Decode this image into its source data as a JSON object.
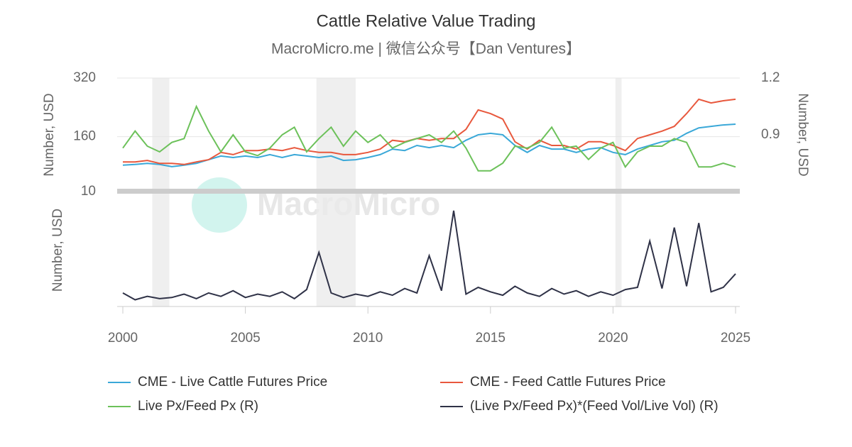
{
  "chart_data": [
    {
      "type": "line",
      "title": "Cattle Relative Value Trading",
      "subtitle": "MacroMicro.me | 微信公众号【Dan Ventures】",
      "watermark": "MacroMicro",
      "x": [
        2000,
        2000.5,
        2001,
        2001.5,
        2002,
        2002.5,
        2003,
        2003.5,
        2004,
        2004.5,
        2005,
        2005.5,
        2006,
        2006.5,
        2007,
        2007.5,
        2008,
        2008.5,
        2009,
        2009.5,
        2010,
        2010.5,
        2011,
        2011.5,
        2012,
        2012.5,
        2013,
        2013.5,
        2014,
        2014.5,
        2015,
        2015.5,
        2016,
        2016.5,
        2017,
        2017.5,
        2018,
        2018.5,
        2019,
        2019.5,
        2020,
        2020.5,
        2021,
        2021.5,
        2022,
        2022.5,
        2023,
        2023.5,
        2024,
        2024.5,
        2025
      ],
      "xlim": [
        2000,
        2025
      ],
      "ylim": [
        10,
        320
      ],
      "yticks": [
        10,
        160,
        320
      ],
      "y2lim": [
        0.6,
        1.2
      ],
      "y2ticks": [
        0.9,
        1.2
      ],
      "ylabel": "Number, USD",
      "y2label": "Number, USD",
      "grid": true,
      "bands": [
        [
          2001.2,
          2001.9
        ],
        [
          2007.9,
          2009.5
        ],
        [
          2020.1,
          2020.35
        ]
      ],
      "series": [
        {
          "name": "CME - Live Cattle Futures Price",
          "color": "#3aa8d8",
          "values": [
            82,
            84,
            87,
            84,
            78,
            82,
            87,
            97,
            107,
            103,
            107,
            103,
            111,
            103,
            111,
            107,
            103,
            107,
            95,
            97,
            103,
            111,
            126,
            122,
            136,
            130,
            136,
            130,
            150,
            165,
            169,
            165,
            136,
            117,
            136,
            126,
            126,
            117,
            126,
            130,
            117,
            111,
            126,
            136,
            146,
            150,
            169,
            184,
            188,
            192,
            194
          ]
        },
        {
          "name": "CME - Feed Cattle Futures Price",
          "color": "#e8583d",
          "values": [
            91,
            91,
            95,
            87,
            87,
            84,
            91,
            97,
            117,
            111,
            122,
            122,
            126,
            122,
            130,
            122,
            117,
            117,
            111,
            111,
            117,
            126,
            150,
            146,
            155,
            150,
            155,
            155,
            180,
            233,
            223,
            208,
            146,
            126,
            150,
            136,
            136,
            126,
            146,
            146,
            136,
            122,
            155,
            165,
            175,
            188,
            223,
            262,
            252,
            258,
            262
          ]
        },
        {
          "name": "Live Px/Feed Px (R)",
          "color": "#6cc15a",
          "axis": "y2",
          "values": [
            0.83,
            0.92,
            0.84,
            0.81,
            0.86,
            0.88,
            1.05,
            0.92,
            0.81,
            0.9,
            0.81,
            0.79,
            0.83,
            0.9,
            0.94,
            0.81,
            0.88,
            0.94,
            0.84,
            0.92,
            0.86,
            0.9,
            0.83,
            0.86,
            0.88,
            0.9,
            0.86,
            0.92,
            0.83,
            0.71,
            0.71,
            0.75,
            0.84,
            0.83,
            0.86,
            0.94,
            0.83,
            0.84,
            0.77,
            0.83,
            0.86,
            0.73,
            0.81,
            0.84,
            0.84,
            0.88,
            0.86,
            0.73,
            0.73,
            0.75,
            0.73
          ]
        }
      ]
    },
    {
      "type": "line",
      "x": [
        2000,
        2000.5,
        2001,
        2001.5,
        2002,
        2002.5,
        2003,
        2003.5,
        2004,
        2004.5,
        2005,
        2005.5,
        2006,
        2006.5,
        2007,
        2007.5,
        2008,
        2008.5,
        2009,
        2009.5,
        2010,
        2010.5,
        2011,
        2011.5,
        2012,
        2012.5,
        2013,
        2013.5,
        2014,
        2014.5,
        2015,
        2015.5,
        2016,
        2016.5,
        2017,
        2017.5,
        2018,
        2018.5,
        2019,
        2019.5,
        2020,
        2020.5,
        2021,
        2021.5,
        2022,
        2022.5,
        2023,
        2023.5,
        2024,
        2024.5,
        2025
      ],
      "xlim": [
        2000,
        2025
      ],
      "xticks": [
        2000,
        2005,
        2010,
        2015,
        2020,
        2025
      ],
      "ylim": [
        0,
        10
      ],
      "ylabel": "Number, USD",
      "series": [
        {
          "name": "(Live Px/Feed Px)*(Feed Vol/Live Vol) (R)",
          "color": "#2f3247",
          "values": [
            1.2,
            0.6,
            0.9,
            0.7,
            0.8,
            1.1,
            0.7,
            1.2,
            0.9,
            1.4,
            0.8,
            1.1,
            0.9,
            1.3,
            0.7,
            1.5,
            4.8,
            1.2,
            0.8,
            1.1,
            0.9,
            1.3,
            1.0,
            1.6,
            1.2,
            4.5,
            1.4,
            8.5,
            1.1,
            1.7,
            1.3,
            1.0,
            1.8,
            1.2,
            0.9,
            1.6,
            1.1,
            1.4,
            0.9,
            1.3,
            1.0,
            1.5,
            1.7,
            5.8,
            1.6,
            7.0,
            1.8,
            7.4,
            1.3,
            1.7,
            2.9
          ]
        }
      ]
    }
  ]
}
